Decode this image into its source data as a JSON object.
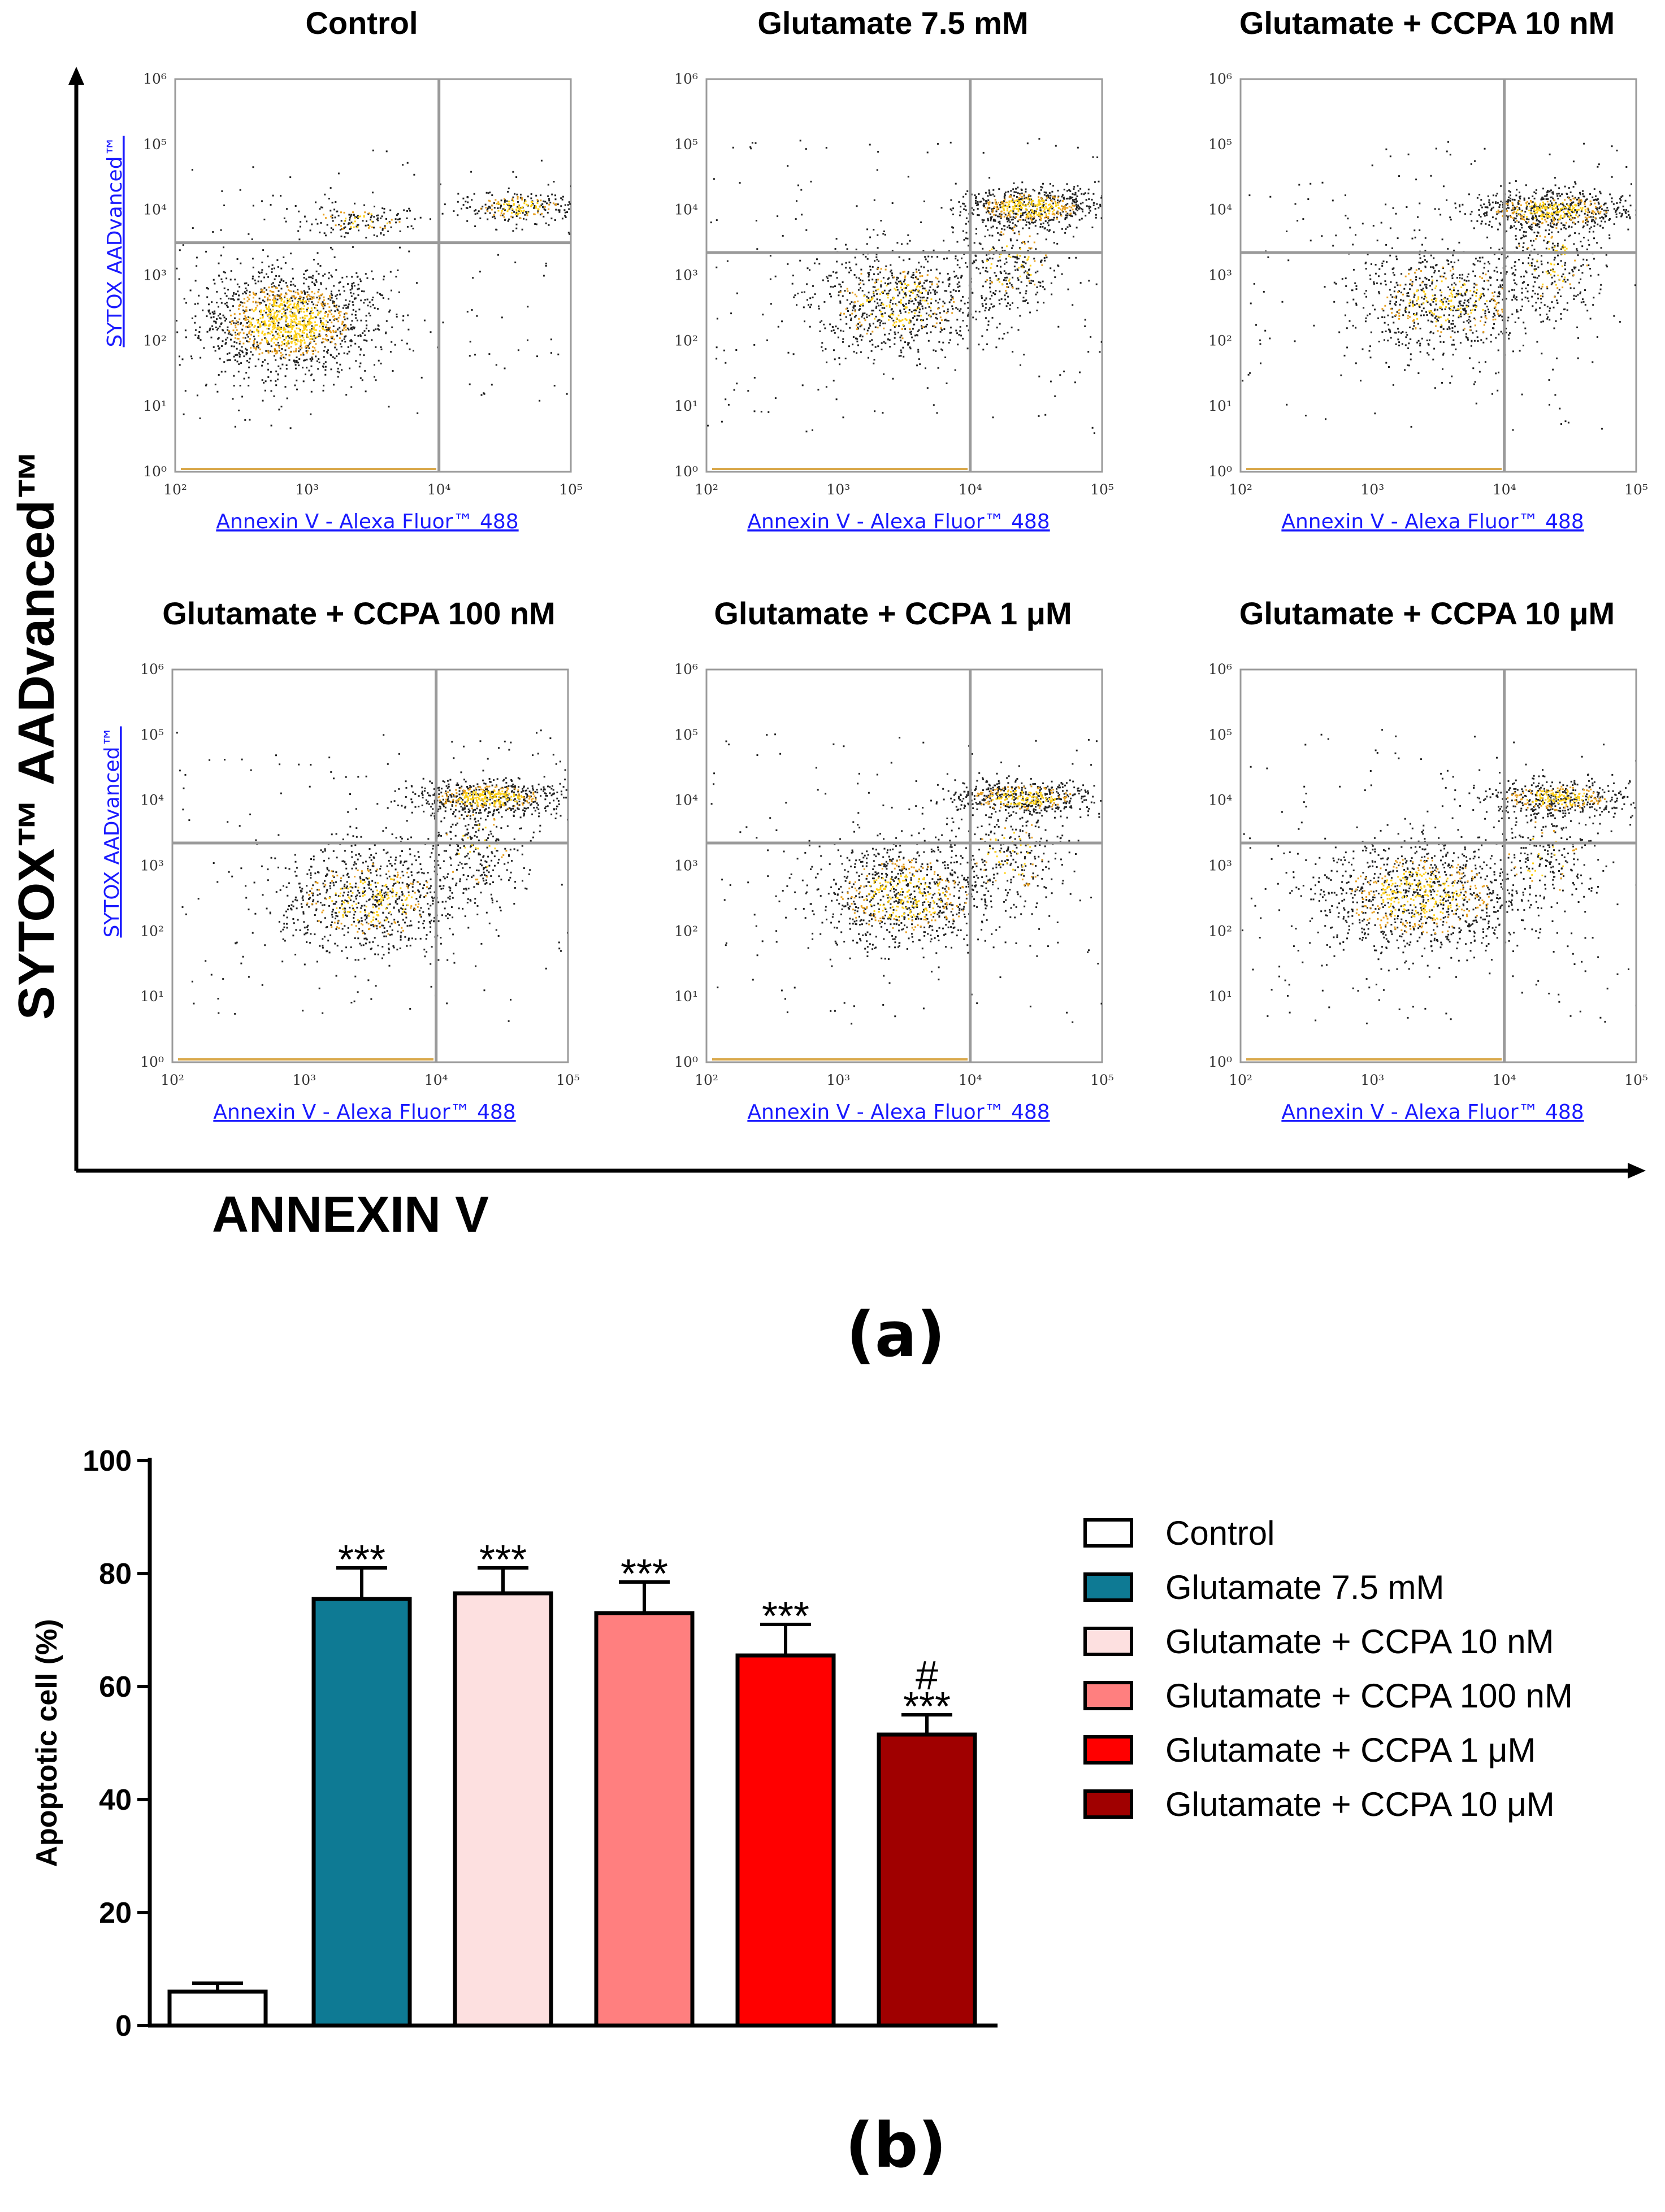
{
  "chart_data": [
    {
      "type": "scatter",
      "subtype": "flow-cytometry-density-grid",
      "x_axis_overall_label": "ANNEXIN V",
      "y_axis_overall_label": "SYTOX™ AADvanced™",
      "panel_xlabel": "Annexin V - Alexa Fluor™ 488",
      "panel_ylabel": "SYTOX AADvanced™",
      "x_ticks": [
        "10²",
        "10³",
        "10⁴",
        "10⁵"
      ],
      "y_ticks": [
        "10⁰",
        "10¹",
        "10²",
        "10³",
        "10⁴",
        "10⁵",
        "10⁶"
      ],
      "x_log_range": [
        2,
        5
      ],
      "y_log_range": [
        0,
        6
      ],
      "panels": [
        {
          "title": "Control",
          "gate_x_log": 4.0,
          "gate_y_log": 3.5,
          "clusters": [
            {
              "x": 2.85,
              "y": 2.3,
              "sx": 0.33,
              "sy": 0.4,
              "n": 1500,
              "dense": 0.75
            },
            {
              "x": 4.6,
              "y": 4.05,
              "sx": 0.22,
              "sy": 0.12,
              "n": 260,
              "dense": 0.55
            },
            {
              "x": 3.4,
              "y": 3.85,
              "sx": 0.25,
              "sy": 0.12,
              "n": 160,
              "dense": 0.3
            }
          ]
        },
        {
          "title": "Glutamate 7.5 mM",
          "gate_x_log": 4.0,
          "gate_y_log": 3.35,
          "clusters": [
            {
              "x": 3.45,
              "y": 2.6,
              "sx": 0.33,
              "sy": 0.4,
              "n": 800,
              "dense": 0.35
            },
            {
              "x": 4.45,
              "y": 4.05,
              "sx": 0.25,
              "sy": 0.15,
              "n": 650,
              "dense": 0.6
            },
            {
              "x": 4.3,
              "y": 3.2,
              "sx": 0.2,
              "sy": 0.4,
              "n": 300,
              "dense": 0.3
            }
          ]
        },
        {
          "title": "Glutamate + CCPA 10 nM",
          "gate_x_log": 4.0,
          "gate_y_log": 3.35,
          "clusters": [
            {
              "x": 3.55,
              "y": 2.6,
              "sx": 0.35,
              "sy": 0.4,
              "n": 750,
              "dense": 0.35
            },
            {
              "x": 4.35,
              "y": 4.0,
              "sx": 0.3,
              "sy": 0.15,
              "n": 700,
              "dense": 0.55
            },
            {
              "x": 4.35,
              "y": 3.2,
              "sx": 0.2,
              "sy": 0.4,
              "n": 280,
              "dense": 0.3
            }
          ]
        },
        {
          "title": "Glutamate + CCPA 100 nM",
          "gate_x_log": 4.0,
          "gate_y_log": 3.35,
          "clusters": [
            {
              "x": 3.5,
              "y": 2.5,
              "sx": 0.35,
              "sy": 0.4,
              "n": 850,
              "dense": 0.4
            },
            {
              "x": 4.4,
              "y": 4.05,
              "sx": 0.28,
              "sy": 0.13,
              "n": 650,
              "dense": 0.6
            },
            {
              "x": 4.3,
              "y": 3.3,
              "sx": 0.18,
              "sy": 0.4,
              "n": 280,
              "dense": 0.3
            }
          ]
        },
        {
          "title": "Glutamate + CCPA 1 μM",
          "gate_x_log": 4.0,
          "gate_y_log": 3.35,
          "clusters": [
            {
              "x": 3.5,
              "y": 2.55,
              "sx": 0.35,
              "sy": 0.4,
              "n": 950,
              "dense": 0.45
            },
            {
              "x": 4.4,
              "y": 4.05,
              "sx": 0.28,
              "sy": 0.13,
              "n": 550,
              "dense": 0.55
            },
            {
              "x": 4.3,
              "y": 3.2,
              "sx": 0.2,
              "sy": 0.4,
              "n": 260,
              "dense": 0.3
            }
          ]
        },
        {
          "title": "Glutamate + CCPA 10 μM",
          "gate_x_log": 4.0,
          "gate_y_log": 3.35,
          "clusters": [
            {
              "x": 3.35,
              "y": 2.55,
              "sx": 0.38,
              "sy": 0.42,
              "n": 1150,
              "dense": 0.5
            },
            {
              "x": 4.4,
              "y": 4.05,
              "sx": 0.28,
              "sy": 0.13,
              "n": 500,
              "dense": 0.5
            },
            {
              "x": 4.3,
              "y": 3.15,
              "sx": 0.2,
              "sy": 0.4,
              "n": 220,
              "dense": 0.3
            }
          ]
        }
      ]
    },
    {
      "type": "bar",
      "title": "",
      "xlabel": "",
      "ylabel": "Apoptotic cell (%)",
      "ylim": [
        0,
        100
      ],
      "y_ticks": [
        0,
        20,
        40,
        60,
        80,
        100
      ],
      "categories": [
        "Control",
        "Glutamate 7.5 mM",
        "Glutamate + CCPA 10 nM",
        "Glutamate + CCPA 100 nM",
        "Glutamate + CCPA 1 μM",
        "Glutamate + CCPA 10 μM"
      ],
      "values": [
        6,
        75.5,
        76.5,
        73,
        65.5,
        51.5
      ],
      "errors": [
        1.5,
        5.5,
        4.5,
        5.5,
        5.5,
        3.5
      ],
      "colors": [
        "#ffffff",
        "#0e7a94",
        "#fde0e0",
        "#ff7f7f",
        "#ff0000",
        "#a00000"
      ],
      "annotations": [
        {
          "index": 1,
          "stars": "***",
          "hash": ""
        },
        {
          "index": 2,
          "stars": "***",
          "hash": ""
        },
        {
          "index": 3,
          "stars": "***",
          "hash": ""
        },
        {
          "index": 4,
          "stars": "***",
          "hash": ""
        },
        {
          "index": 5,
          "stars": "***",
          "hash": "#"
        }
      ]
    }
  ],
  "figure": {
    "panel_a_label": "(a)",
    "panel_b_label": "(b)"
  }
}
